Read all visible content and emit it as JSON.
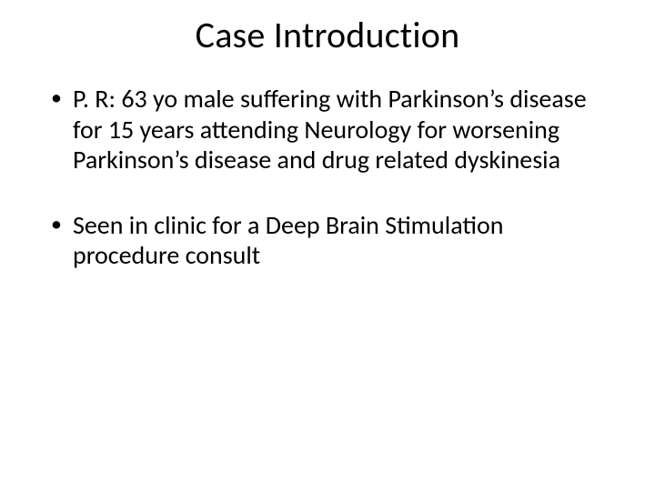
{
  "slide": {
    "title": "Case Introduction",
    "bullets": [
      "P. R: 63 yo male suffering with Parkinson’s disease for 15 years attending Neurology for worsening Parkinson’s disease and drug related dyskinesia",
      "Seen in clinic for a Deep Brain Stimulation procedure consult"
    ]
  },
  "style": {
    "background_color": "#ffffff",
    "text_color": "#000000",
    "font_family": "Calibri",
    "title_fontsize": 40,
    "title_fontweight": 400,
    "body_fontsize": 28,
    "body_lineheight": 1.2,
    "bullet_glyph": "•",
    "slide_width": 720,
    "slide_height": 540,
    "bullet_gap": 38
  }
}
